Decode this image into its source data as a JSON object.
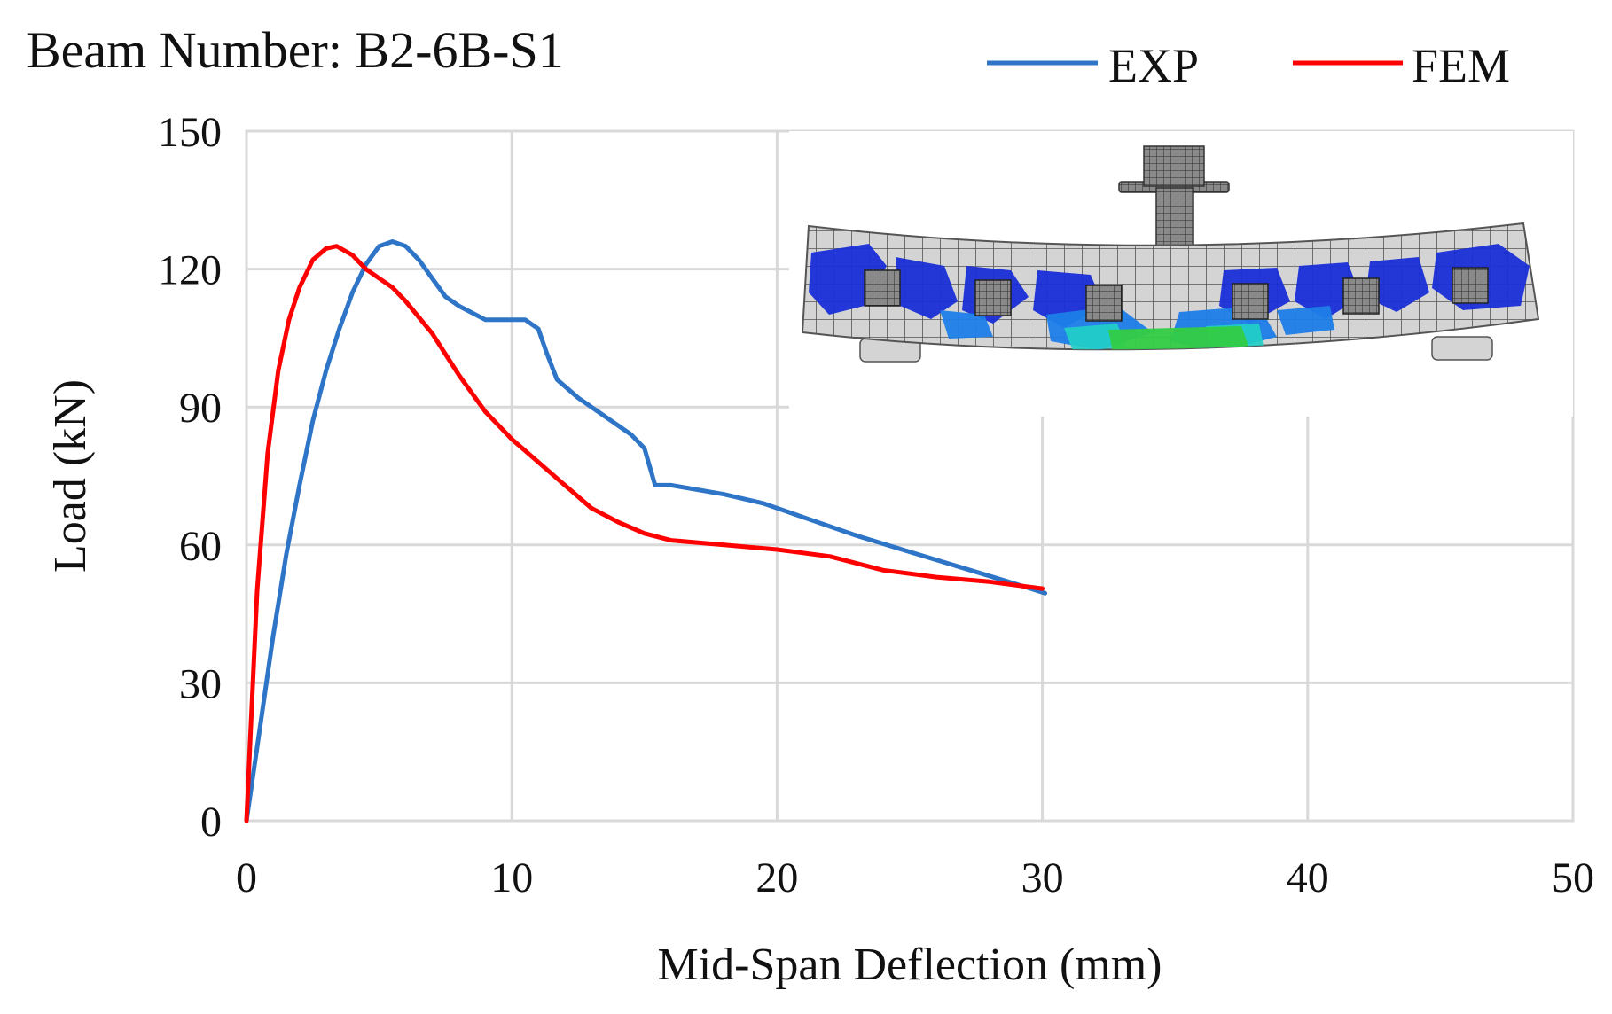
{
  "chart_data": {
    "type": "line",
    "title": "Beam Number: B2-6B-S1",
    "xlabel": "Mid-Span Deflection (mm)",
    "ylabel": "Load (kN)",
    "xlim": [
      0,
      50
    ],
    "ylim": [
      0,
      150
    ],
    "x_ticks": [
      0,
      10,
      20,
      30,
      40,
      50
    ],
    "y_ticks": [
      0,
      30,
      60,
      90,
      120,
      150
    ],
    "grid": true,
    "legend_position": "top-right",
    "series": [
      {
        "name": "EXP",
        "color": "#2e75c7",
        "points": [
          [
            0,
            0
          ],
          [
            0.5,
            20
          ],
          [
            1.0,
            40
          ],
          [
            1.5,
            58
          ],
          [
            2.0,
            73
          ],
          [
            2.5,
            87
          ],
          [
            3.0,
            98
          ],
          [
            3.5,
            107
          ],
          [
            4.0,
            115
          ],
          [
            4.5,
            121
          ],
          [
            5.0,
            125
          ],
          [
            5.5,
            126
          ],
          [
            6.0,
            125
          ],
          [
            6.5,
            122
          ],
          [
            7.0,
            118
          ],
          [
            7.5,
            114
          ],
          [
            8.0,
            112
          ],
          [
            9.0,
            109
          ],
          [
            10.0,
            109
          ],
          [
            10.5,
            109
          ],
          [
            11.0,
            107
          ],
          [
            11.3,
            102
          ],
          [
            11.7,
            96
          ],
          [
            12.5,
            92
          ],
          [
            13.5,
            88
          ],
          [
            14.5,
            84
          ],
          [
            15.0,
            81
          ],
          [
            15.4,
            73
          ],
          [
            16.0,
            73
          ],
          [
            18.0,
            71
          ],
          [
            19.5,
            69
          ],
          [
            21.0,
            66
          ],
          [
            23.0,
            62
          ],
          [
            25.0,
            58.5
          ],
          [
            27.0,
            55
          ],
          [
            29.0,
            51.5
          ],
          [
            30.1,
            49.5
          ]
        ]
      },
      {
        "name": "FEM",
        "color": "#ff0000",
        "points": [
          [
            0,
            0
          ],
          [
            0.4,
            50
          ],
          [
            0.8,
            80
          ],
          [
            1.2,
            98
          ],
          [
            1.6,
            109
          ],
          [
            2.0,
            116
          ],
          [
            2.5,
            122
          ],
          [
            3.0,
            124.5
          ],
          [
            3.4,
            125
          ],
          [
            4.0,
            123
          ],
          [
            4.5,
            120
          ],
          [
            5.0,
            118
          ],
          [
            5.5,
            116
          ],
          [
            6.0,
            113
          ],
          [
            7.0,
            106
          ],
          [
            8.0,
            97
          ],
          [
            9.0,
            89
          ],
          [
            10.0,
            83
          ],
          [
            11.0,
            78
          ],
          [
            12.0,
            73
          ],
          [
            13.0,
            68
          ],
          [
            14.0,
            65
          ],
          [
            15.0,
            62.5
          ],
          [
            16.0,
            61
          ],
          [
            18.0,
            60
          ],
          [
            20.0,
            59
          ],
          [
            22.0,
            57.5
          ],
          [
            24.0,
            54.5
          ],
          [
            26.0,
            53
          ],
          [
            28.0,
            52
          ],
          [
            30.0,
            50.5
          ]
        ]
      }
    ]
  },
  "inset": {
    "description_icon": "fem-beam-damage-contour-icon",
    "colors": {
      "mesh": "#d4d4d4",
      "mesh_lines": "#555555",
      "damage_high": "#1a2fd8",
      "damage_mid": "#1e7ee8",
      "damage_low": "#33cc44",
      "steel_plate": "#7a7a7a"
    }
  }
}
